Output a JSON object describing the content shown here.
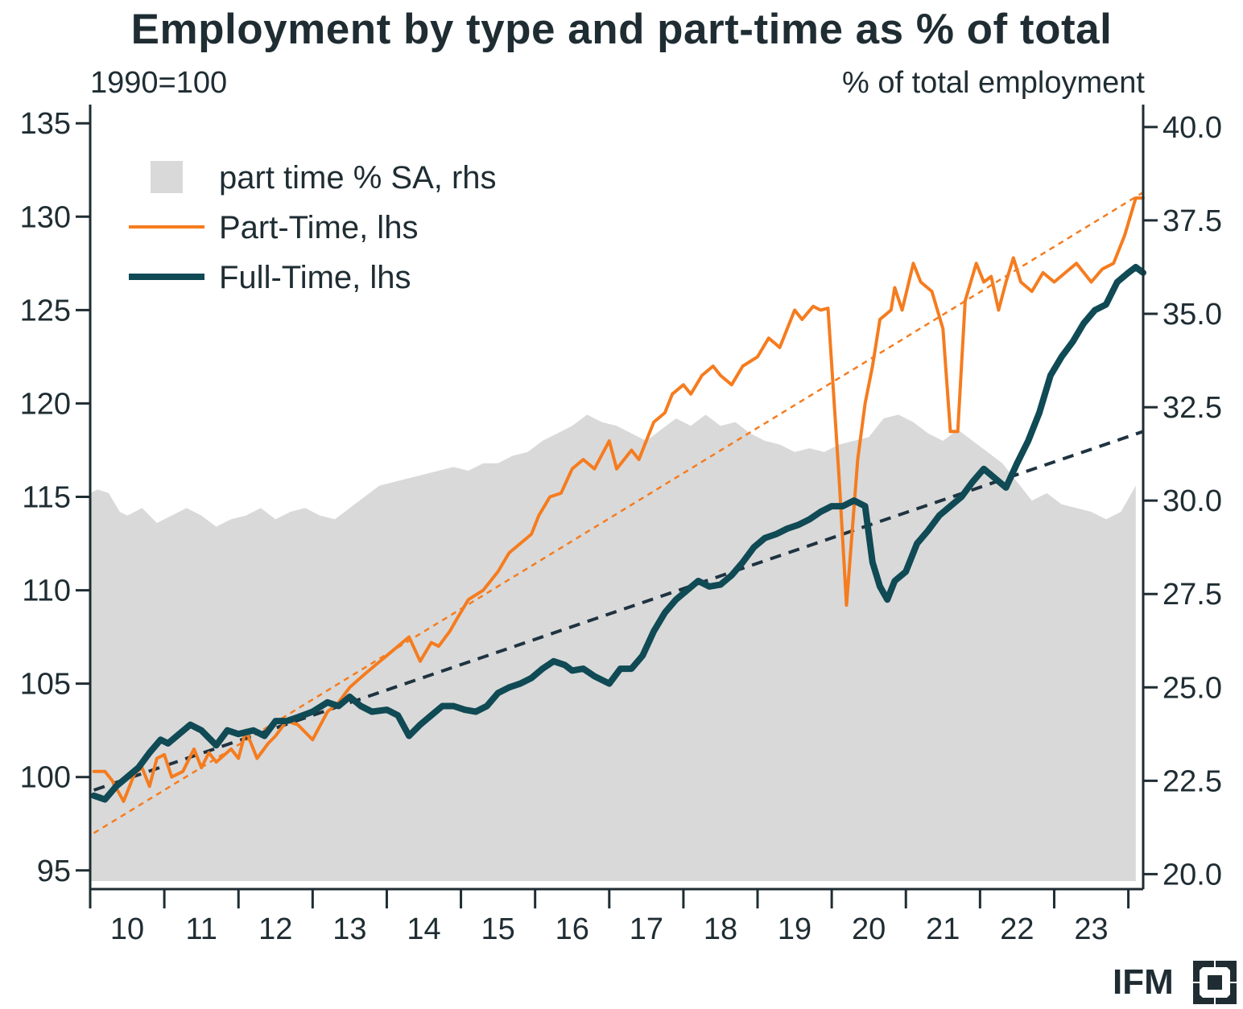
{
  "chart_data": {
    "type": "line",
    "title": "Employment by type and part-time as % of total",
    "left_axis_label": "1990=100",
    "right_axis_label": "% of total employment",
    "x_ticks": [
      "10",
      "11",
      "12",
      "13",
      "14",
      "15",
      "16",
      "17",
      "18",
      "19",
      "20",
      "21",
      "22",
      "23"
    ],
    "x_range": [
      2009.5,
      2023.7
    ],
    "ylim_left": [
      94,
      136
    ],
    "yticks_left": [
      95,
      100,
      105,
      110,
      115,
      120,
      125,
      130,
      135
    ],
    "ylim_right": [
      19.6,
      40.6
    ],
    "yticks_right": [
      "20.0",
      "22.5",
      "25.0",
      "27.5",
      "30.0",
      "32.5",
      "35.0",
      "37.5",
      "40.0"
    ],
    "legend": {
      "placement": "top-left",
      "items": [
        {
          "label": "part time % SA, rhs",
          "kind": "area",
          "color": "#d9d9d9"
        },
        {
          "label": "Part-Time, lhs",
          "kind": "line",
          "color": "#f57c1f"
        },
        {
          "label": "Full-Time, lhs",
          "kind": "line",
          "color": "#0f4a55"
        }
      ]
    },
    "series": [
      {
        "name": "part time % SA, rhs",
        "axis": "right",
        "type": "area",
        "color": "#d9d9d9",
        "x": [
          2009.5,
          2009.6,
          2009.75,
          2009.9,
          2010.0,
          2010.2,
          2010.4,
          2010.6,
          2010.8,
          2011.0,
          2011.2,
          2011.4,
          2011.6,
          2011.8,
          2012.0,
          2012.2,
          2012.4,
          2012.6,
          2012.8,
          2013.0,
          2013.2,
          2013.4,
          2013.6,
          2013.8,
          2014.0,
          2014.2,
          2014.4,
          2014.6,
          2014.8,
          2015.0,
          2015.2,
          2015.4,
          2015.6,
          2015.8,
          2016.0,
          2016.2,
          2016.4,
          2016.6,
          2016.8,
          2017.0,
          2017.2,
          2017.4,
          2017.6,
          2017.8,
          2018.0,
          2018.2,
          2018.4,
          2018.6,
          2018.8,
          2019.0,
          2019.2,
          2019.4,
          2019.6,
          2019.8,
          2020.0,
          2020.2,
          2020.4,
          2020.6,
          2020.8,
          2021.0,
          2021.2,
          2021.4,
          2021.6,
          2021.8,
          2022.0,
          2022.2,
          2022.4,
          2022.6,
          2022.8,
          2023.0,
          2023.2,
          2023.4,
          2023.6
        ],
        "values": [
          30.2,
          30.3,
          30.2,
          29.7,
          29.6,
          29.8,
          29.4,
          29.6,
          29.8,
          29.6,
          29.3,
          29.5,
          29.6,
          29.8,
          29.5,
          29.7,
          29.8,
          29.6,
          29.5,
          29.8,
          30.1,
          30.4,
          30.5,
          30.6,
          30.7,
          30.8,
          30.9,
          30.8,
          31.0,
          31.0,
          31.2,
          31.3,
          31.6,
          31.8,
          32.0,
          32.3,
          32.1,
          32.0,
          31.8,
          31.6,
          31.9,
          32.2,
          32.0,
          32.3,
          32.0,
          32.1,
          31.8,
          31.6,
          31.5,
          31.3,
          31.4,
          31.3,
          31.5,
          31.6,
          31.7,
          32.2,
          32.3,
          32.1,
          31.8,
          31.6,
          31.9,
          31.6,
          31.3,
          31.0,
          30.5,
          30.0,
          30.2,
          29.9,
          29.8,
          29.7,
          29.5,
          29.7,
          30.4
        ]
      },
      {
        "name": "Part-Time, lhs",
        "axis": "left",
        "type": "line",
        "color": "#f57c1f",
        "x": [
          2009.55,
          2009.7,
          2009.8,
          2009.95,
          2010.1,
          2010.2,
          2010.3,
          2010.4,
          2010.5,
          2010.6,
          2010.75,
          2010.9,
          2011.0,
          2011.1,
          2011.2,
          2011.4,
          2011.5,
          2011.6,
          2011.75,
          2011.9,
          2012.0,
          2012.15,
          2012.3,
          2012.5,
          2012.7,
          2012.85,
          2013.0,
          2013.2,
          2013.35,
          2013.5,
          2013.65,
          2013.8,
          2013.95,
          2014.1,
          2014.2,
          2014.35,
          2014.45,
          2014.6,
          2014.8,
          2014.9,
          2015.0,
          2015.15,
          2015.3,
          2015.45,
          2015.55,
          2015.7,
          2015.85,
          2016.0,
          2016.15,
          2016.3,
          2016.5,
          2016.6,
          2016.8,
          2016.9,
          2017.0,
          2017.1,
          2017.25,
          2017.35,
          2017.5,
          2017.6,
          2017.75,
          2017.9,
          2018.0,
          2018.15,
          2018.3,
          2018.5,
          2018.65,
          2018.8,
          2019.0,
          2019.1,
          2019.25,
          2019.35,
          2019.45,
          2019.6,
          2019.7,
          2019.85,
          2019.95,
          2020.05,
          2020.15,
          2020.3,
          2020.35,
          2020.45,
          2020.6,
          2020.7,
          2020.85,
          2021.0,
          2021.1,
          2021.2,
          2021.3,
          2021.45,
          2021.55,
          2021.65,
          2021.75,
          2021.85,
          2021.95,
          2022.05,
          2022.2,
          2022.35,
          2022.5,
          2022.65,
          2022.8,
          2023.0,
          2023.15,
          2023.3,
          2023.45,
          2023.6,
          2023.7
        ],
        "values": [
          100.3,
          100.3,
          99.8,
          98.7,
          100.2,
          100.5,
          99.5,
          101.0,
          101.2,
          100.0,
          100.3,
          101.5,
          100.5,
          101.3,
          100.8,
          101.5,
          101.0,
          102.5,
          101.0,
          101.8,
          102.2,
          103.0,
          102.8,
          102.0,
          103.5,
          104.0,
          104.8,
          105.5,
          106.0,
          106.5,
          107.0,
          107.5,
          106.2,
          107.2,
          107.0,
          107.8,
          108.5,
          109.5,
          110.0,
          110.5,
          111.0,
          112.0,
          112.5,
          113.0,
          114.0,
          115.0,
          115.2,
          116.5,
          117.0,
          116.5,
          118.0,
          116.5,
          117.5,
          117.0,
          118.0,
          119.0,
          119.5,
          120.5,
          121.0,
          120.5,
          121.5,
          122.0,
          121.5,
          121.0,
          122.0,
          122.5,
          123.5,
          123.0,
          125.0,
          124.5,
          125.2,
          125.0,
          125.1,
          116.0,
          109.2,
          117.0,
          120.0,
          122.0,
          124.5,
          125.0,
          126.2,
          125.0,
          127.5,
          126.5,
          126.0,
          124.0,
          118.5,
          118.5,
          125.5,
          127.5,
          126.5,
          126.8,
          125.0,
          126.5,
          127.8,
          126.5,
          126.0,
          127.0,
          126.5,
          127.0,
          127.5,
          126.5,
          127.2,
          127.5,
          129.0,
          131.0,
          131.0
        ]
      },
      {
        "name": "Full-Time, lhs",
        "axis": "left",
        "type": "line",
        "color": "#0f4a55",
        "x": [
          2009.55,
          2009.7,
          2009.85,
          2010.0,
          2010.15,
          2010.3,
          2010.45,
          2010.55,
          2010.7,
          2010.85,
          2011.0,
          2011.2,
          2011.35,
          2011.5,
          2011.7,
          2011.85,
          2012.0,
          2012.15,
          2012.3,
          2012.5,
          2012.7,
          2012.85,
          2013.0,
          2013.15,
          2013.3,
          2013.5,
          2013.65,
          2013.8,
          2013.95,
          2014.1,
          2014.25,
          2014.4,
          2014.55,
          2014.7,
          2014.85,
          2015.0,
          2015.15,
          2015.3,
          2015.45,
          2015.6,
          2015.75,
          2015.9,
          2016.0,
          2016.15,
          2016.3,
          2016.5,
          2016.65,
          2016.8,
          2016.95,
          2017.1,
          2017.25,
          2017.4,
          2017.55,
          2017.7,
          2017.85,
          2018.0,
          2018.15,
          2018.3,
          2018.45,
          2018.6,
          2018.75,
          2018.9,
          2019.05,
          2019.2,
          2019.35,
          2019.5,
          2019.65,
          2019.8,
          2019.95,
          2020.05,
          2020.15,
          2020.25,
          2020.35,
          2020.5,
          2020.65,
          2020.8,
          2020.95,
          2021.1,
          2021.25,
          2021.4,
          2021.55,
          2021.7,
          2021.85,
          2022.0,
          2022.15,
          2022.3,
          2022.45,
          2022.6,
          2022.75,
          2022.9,
          2023.05,
          2023.2,
          2023.35,
          2023.5,
          2023.6,
          2023.7
        ],
        "values": [
          99.0,
          98.8,
          99.5,
          100.0,
          100.5,
          101.3,
          102.0,
          101.8,
          102.3,
          102.8,
          102.5,
          101.7,
          102.5,
          102.3,
          102.5,
          102.2,
          103.0,
          103.0,
          103.2,
          103.5,
          104.0,
          103.8,
          104.3,
          103.8,
          103.5,
          103.6,
          103.3,
          102.2,
          102.8,
          103.3,
          103.8,
          103.8,
          103.6,
          103.5,
          103.8,
          104.5,
          104.8,
          105.0,
          105.3,
          105.8,
          106.2,
          106.0,
          105.7,
          105.8,
          105.4,
          105.0,
          105.8,
          105.8,
          106.5,
          107.8,
          108.8,
          109.5,
          110.0,
          110.5,
          110.2,
          110.3,
          110.8,
          111.5,
          112.3,
          112.8,
          113.0,
          113.3,
          113.5,
          113.8,
          114.2,
          114.5,
          114.5,
          114.8,
          114.5,
          111.5,
          110.2,
          109.5,
          110.5,
          111.0,
          112.5,
          113.2,
          114.0,
          114.5,
          115.0,
          115.8,
          116.5,
          116.0,
          115.5,
          116.8,
          118.0,
          119.5,
          121.5,
          122.5,
          123.3,
          124.3,
          125.0,
          125.3,
          126.5,
          127.0,
          127.3,
          127.0
        ]
      }
    ],
    "trend_lines": [
      {
        "of": "Part-Time, lhs",
        "style": "dotted",
        "color": "#f57c1f",
        "x": [
          2009.55,
          2023.7
        ],
        "values": [
          97.0,
          131.3
        ]
      },
      {
        "of": "Full-Time, lhs",
        "style": "dashed",
        "color": "#1f3340",
        "x": [
          2009.55,
          2023.7
        ],
        "values": [
          99.3,
          118.5
        ]
      }
    ]
  },
  "logo": {
    "text": "IFM"
  }
}
